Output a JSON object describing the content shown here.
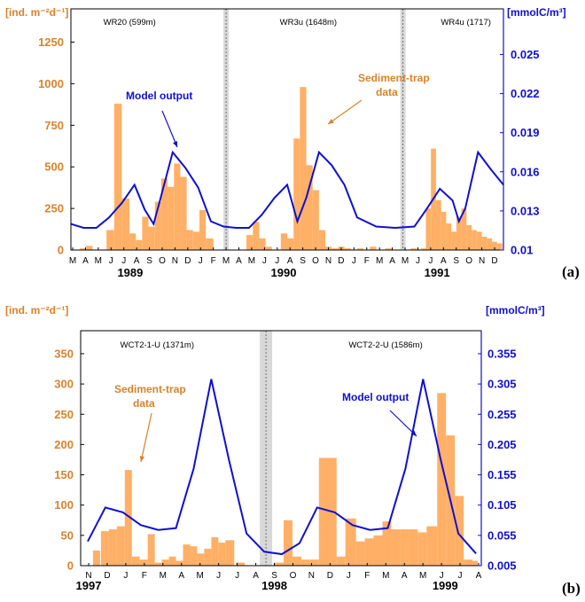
{
  "colors": {
    "bars": "#ffb066",
    "model": "#1010d0",
    "left_axis": "#d9822b",
    "right_axis": "#1010d0",
    "gap": "#d8d8d8"
  },
  "chart_data": [
    {
      "panel_label": "(a)",
      "type": "bar",
      "left_unit": "[ind. m⁻²d⁻¹]",
      "right_unit": "[mmolC/m³]",
      "y_left_ticks": [
        "0",
        "250",
        "500",
        "750",
        "1000",
        "1250"
      ],
      "y_left_lim": [
        0,
        1450
      ],
      "y_right_ticks": [
        "0.01",
        "0.013",
        "0.016",
        "0.019",
        "0.022",
        "0.025"
      ],
      "y_right_lim": [
        0.01,
        0.0285
      ],
      "months": [
        "M",
        "A",
        "M",
        "J",
        "J",
        "A",
        "S",
        "O",
        "N",
        "D",
        "J",
        "F",
        "M",
        "A",
        "M",
        "J",
        "J",
        "A",
        "S",
        "O",
        "N",
        "D",
        "J",
        "F",
        "M",
        "A",
        "M",
        "J",
        "J",
        "A",
        "S",
        "O",
        "N",
        "D"
      ],
      "years": [
        {
          "label": "1989",
          "at_month": 4.5
        },
        {
          "label": "1990",
          "at_month": 16.5
        },
        {
          "label": "1991",
          "at_month": 28.5
        }
      ],
      "stations": [
        {
          "label": "WR20 (599m)",
          "at_month": 2.4
        },
        {
          "label": "WR3u (1648m)",
          "at_month": 16.2
        },
        {
          "label": "WR4u (1717)",
          "at_month": 28.8
        }
      ],
      "gaps": [
        11.7,
        25.6
      ],
      "bars": [
        {
          "x": 0.2,
          "w": 0.5,
          "v": 10
        },
        {
          "x": 0.7,
          "w": 0.5,
          "v": 25
        },
        {
          "x": 2.3,
          "w": 0.6,
          "v": 120
        },
        {
          "x": 2.9,
          "w": 0.6,
          "v": 880
        },
        {
          "x": 3.5,
          "w": 0.6,
          "v": 310
        },
        {
          "x": 4.1,
          "w": 0.5,
          "v": 100
        },
        {
          "x": 4.6,
          "w": 0.5,
          "v": 60
        },
        {
          "x": 5.1,
          "w": 0.5,
          "v": 200
        },
        {
          "x": 5.6,
          "w": 0.5,
          "v": 140
        },
        {
          "x": 6.1,
          "w": 0.5,
          "v": 290
        },
        {
          "x": 6.6,
          "w": 0.5,
          "v": 430
        },
        {
          "x": 7.1,
          "w": 0.5,
          "v": 380
        },
        {
          "x": 7.6,
          "w": 0.5,
          "v": 520
        },
        {
          "x": 8.1,
          "w": 0.5,
          "v": 440
        },
        {
          "x": 8.6,
          "w": 0.5,
          "v": 120
        },
        {
          "x": 9.1,
          "w": 0.5,
          "v": 110
        },
        {
          "x": 9.6,
          "w": 0.5,
          "v": 240
        },
        {
          "x": 10.1,
          "w": 0.6,
          "v": 70
        },
        {
          "x": 13.3,
          "w": 0.5,
          "v": 90
        },
        {
          "x": 13.8,
          "w": 0.5,
          "v": 170
        },
        {
          "x": 14.3,
          "w": 0.5,
          "v": 70
        },
        {
          "x": 14.8,
          "w": 0.5,
          "v": 20
        },
        {
          "x": 16.0,
          "w": 0.5,
          "v": 100
        },
        {
          "x": 16.5,
          "w": 0.5,
          "v": 70
        },
        {
          "x": 17.0,
          "w": 0.5,
          "v": 670
        },
        {
          "x": 17.5,
          "w": 0.5,
          "v": 980
        },
        {
          "x": 18.0,
          "w": 0.5,
          "v": 510
        },
        {
          "x": 18.5,
          "w": 0.5,
          "v": 360
        },
        {
          "x": 19.0,
          "w": 0.5,
          "v": 120
        },
        {
          "x": 19.5,
          "w": 0.5,
          "v": 20
        },
        {
          "x": 20.0,
          "w": 0.5,
          "v": 10
        },
        {
          "x": 20.5,
          "w": 0.5,
          "v": 20
        },
        {
          "x": 21.0,
          "w": 0.5,
          "v": 10
        },
        {
          "x": 22.0,
          "w": 0.5,
          "v": 10
        },
        {
          "x": 23.0,
          "w": 0.5,
          "v": 20
        },
        {
          "x": 24.2,
          "w": 0.5,
          "v": 10
        },
        {
          "x": 26.2,
          "w": 0.5,
          "v": 10
        },
        {
          "x": 27.0,
          "w": 0.5,
          "v": 10
        },
        {
          "x": 27.4,
          "w": 0.4,
          "v": 250
        },
        {
          "x": 27.8,
          "w": 0.4,
          "v": 610
        },
        {
          "x": 28.2,
          "w": 0.4,
          "v": 300
        },
        {
          "x": 28.6,
          "w": 0.4,
          "v": 230
        },
        {
          "x": 29.0,
          "w": 0.4,
          "v": 160
        },
        {
          "x": 29.4,
          "w": 0.4,
          "v": 110
        },
        {
          "x": 29.8,
          "w": 0.4,
          "v": 200
        },
        {
          "x": 30.2,
          "w": 0.4,
          "v": 250
        },
        {
          "x": 30.6,
          "w": 0.4,
          "v": 150
        },
        {
          "x": 31.0,
          "w": 0.4,
          "v": 120
        },
        {
          "x": 31.4,
          "w": 0.4,
          "v": 110
        },
        {
          "x": 31.8,
          "w": 0.4,
          "v": 80
        },
        {
          "x": 32.2,
          "w": 0.4,
          "v": 70
        },
        {
          "x": 32.6,
          "w": 0.4,
          "v": 50
        },
        {
          "x": 33.0,
          "w": 0.4,
          "v": 40
        }
      ],
      "model": [
        {
          "x": -0.5,
          "y": 0.012
        },
        {
          "x": 0.5,
          "y": 0.0117
        },
        {
          "x": 1.5,
          "y": 0.0117
        },
        {
          "x": 2.5,
          "y": 0.0125
        },
        {
          "x": 3.5,
          "y": 0.0136
        },
        {
          "x": 4.5,
          "y": 0.015
        },
        {
          "x": 5.3,
          "y": 0.0131
        },
        {
          "x": 6.0,
          "y": 0.012
        },
        {
          "x": 6.5,
          "y": 0.0138
        },
        {
          "x": 7.5,
          "y": 0.0175
        },
        {
          "x": 8.5,
          "y": 0.0163
        },
        {
          "x": 9.5,
          "y": 0.0148
        },
        {
          "x": 10.5,
          "y": 0.0122
        },
        {
          "x": 11.5,
          "y": 0.0118
        },
        {
          "x": 12.5,
          "y": 0.0117
        },
        {
          "x": 13.5,
          "y": 0.0117
        },
        {
          "x": 14.5,
          "y": 0.0127
        },
        {
          "x": 15.5,
          "y": 0.014
        },
        {
          "x": 16.5,
          "y": 0.015
        },
        {
          "x": 17.3,
          "y": 0.0122
        },
        {
          "x": 18.0,
          "y": 0.014
        },
        {
          "x": 19.0,
          "y": 0.0175
        },
        {
          "x": 20.0,
          "y": 0.0165
        },
        {
          "x": 21.0,
          "y": 0.015
        },
        {
          "x": 22.0,
          "y": 0.0125
        },
        {
          "x": 23.5,
          "y": 0.0118
        },
        {
          "x": 25.0,
          "y": 0.0117
        },
        {
          "x": 26.5,
          "y": 0.0118
        },
        {
          "x": 27.5,
          "y": 0.0132
        },
        {
          "x": 28.5,
          "y": 0.0147
        },
        {
          "x": 29.5,
          "y": 0.0138
        },
        {
          "x": 30.0,
          "y": 0.0122
        },
        {
          "x": 30.5,
          "y": 0.0132
        },
        {
          "x": 31.5,
          "y": 0.0175
        },
        {
          "x": 32.5,
          "y": 0.0162
        },
        {
          "x": 33.5,
          "y": 0.015
        }
      ],
      "annotations": {
        "model_label": "Model output",
        "trap_label_1": "Sediment-trap",
        "trap_label_2": "data"
      }
    },
    {
      "panel_label": "(b)",
      "type": "bar",
      "left_unit": "[ind. m⁻²d⁻¹]",
      "right_unit": "[mmolC/m³]",
      "y_left_ticks": [
        "0",
        "50",
        "100",
        "150",
        "200",
        "250",
        "300",
        "350"
      ],
      "y_left_lim": [
        0,
        388
      ],
      "y_right_ticks": [
        "0.005",
        "0.055",
        "0.105",
        "0.155",
        "0.205",
        "0.255",
        "0.305",
        "0.355"
      ],
      "y_right_lim": [
        0.005,
        0.393
      ],
      "months": [
        "N",
        "D",
        "J",
        "F",
        "M",
        "A",
        "M",
        "J",
        "J",
        "A",
        "S",
        "O",
        "N",
        "D",
        "J",
        "F",
        "M",
        "A",
        "M",
        "J",
        "J",
        "A"
      ],
      "years": [
        {
          "label": "1997",
          "at_month": 0.0
        },
        {
          "label": "1998",
          "at_month": 10.0
        },
        {
          "label": "1999",
          "at_month": 19.2
        }
      ],
      "stations": [
        {
          "label": "WCT2-1-U (1371m)",
          "at_month": 1.7
        },
        {
          "label": "WCT2-2-U (1586m)",
          "at_month": 14.0
        }
      ],
      "gaps": [
        9.4
      ],
      "bars": [
        {
          "x": -0.2,
          "w": 0.4,
          "v": 25
        },
        {
          "x": 0.25,
          "w": 0.45,
          "v": 57
        },
        {
          "x": 0.7,
          "w": 0.45,
          "v": 60
        },
        {
          "x": 1.15,
          "w": 0.45,
          "v": 65
        },
        {
          "x": 1.6,
          "w": 0.4,
          "v": 158
        },
        {
          "x": 2.0,
          "w": 0.45,
          "v": 15
        },
        {
          "x": 2.45,
          "w": 0.45,
          "v": 10
        },
        {
          "x": 2.9,
          "w": 0.4,
          "v": 52
        },
        {
          "x": 3.3,
          "w": 0.4,
          "v": 5
        },
        {
          "x": 3.7,
          "w": 0.4,
          "v": 10
        },
        {
          "x": 4.1,
          "w": 0.4,
          "v": 15
        },
        {
          "x": 4.5,
          "w": 0.4,
          "v": 8
        },
        {
          "x": 4.9,
          "w": 0.4,
          "v": 35
        },
        {
          "x": 5.3,
          "w": 0.4,
          "v": 32
        },
        {
          "x": 5.7,
          "w": 0.4,
          "v": 20
        },
        {
          "x": 6.1,
          "w": 0.4,
          "v": 28
        },
        {
          "x": 6.5,
          "w": 0.4,
          "v": 47
        },
        {
          "x": 6.9,
          "w": 0.4,
          "v": 38
        },
        {
          "x": 7.3,
          "w": 0.5,
          "v": 42
        },
        {
          "x": 7.9,
          "w": 0.5,
          "v": 5
        },
        {
          "x": 10.1,
          "w": 0.5,
          "v": 5
        },
        {
          "x": 10.6,
          "w": 0.5,
          "v": 75
        },
        {
          "x": 11.1,
          "w": 0.5,
          "v": 15
        },
        {
          "x": 11.6,
          "w": 0.5,
          "v": 10
        },
        {
          "x": 12.1,
          "w": 0.5,
          "v": 10
        },
        {
          "x": 12.6,
          "w": 1.0,
          "v": 178
        },
        {
          "x": 13.6,
          "w": 0.5,
          "v": 15
        },
        {
          "x": 14.1,
          "w": 0.6,
          "v": 78
        },
        {
          "x": 14.7,
          "w": 0.5,
          "v": 40
        },
        {
          "x": 15.2,
          "w": 0.5,
          "v": 45
        },
        {
          "x": 15.7,
          "w": 0.5,
          "v": 50
        },
        {
          "x": 16.2,
          "w": 0.5,
          "v": 73
        },
        {
          "x": 16.7,
          "w": 0.5,
          "v": 60
        },
        {
          "x": 17.2,
          "w": 0.5,
          "v": 60
        },
        {
          "x": 17.7,
          "w": 0.5,
          "v": 60
        },
        {
          "x": 18.2,
          "w": 0.5,
          "v": 55
        },
        {
          "x": 18.7,
          "w": 0.6,
          "v": 65
        },
        {
          "x": 19.3,
          "w": 0.5,
          "v": 285
        },
        {
          "x": 19.8,
          "w": 0.5,
          "v": 215
        },
        {
          "x": 20.3,
          "w": 0.5,
          "v": 115
        },
        {
          "x": 20.8,
          "w": 0.5,
          "v": 10
        },
        {
          "x": 21.2,
          "w": 0.4,
          "v": 8
        }
      ],
      "model": [
        {
          "x": -0.5,
          "y": 0.045
        },
        {
          "x": 0.5,
          "y": 0.101
        },
        {
          "x": 1.5,
          "y": 0.093
        },
        {
          "x": 2.5,
          "y": 0.072
        },
        {
          "x": 3.5,
          "y": 0.064
        },
        {
          "x": 4.5,
          "y": 0.067
        },
        {
          "x": 5.5,
          "y": 0.165
        },
        {
          "x": 6.5,
          "y": 0.313
        },
        {
          "x": 7.5,
          "y": 0.18
        },
        {
          "x": 8.5,
          "y": 0.058
        },
        {
          "x": 9.5,
          "y": 0.028
        },
        {
          "x": 10.5,
          "y": 0.024
        },
        {
          "x": 11.5,
          "y": 0.042
        },
        {
          "x": 12.5,
          "y": 0.101
        },
        {
          "x": 13.5,
          "y": 0.093
        },
        {
          "x": 14.5,
          "y": 0.072
        },
        {
          "x": 15.5,
          "y": 0.064
        },
        {
          "x": 16.5,
          "y": 0.067
        },
        {
          "x": 17.5,
          "y": 0.165
        },
        {
          "x": 18.5,
          "y": 0.313
        },
        {
          "x": 19.5,
          "y": 0.18
        },
        {
          "x": 20.5,
          "y": 0.058
        },
        {
          "x": 21.5,
          "y": 0.025
        }
      ],
      "annotations": {
        "model_label": "Model output",
        "trap_label_1": "Sediment-trap",
        "trap_label_2": "data"
      }
    }
  ]
}
